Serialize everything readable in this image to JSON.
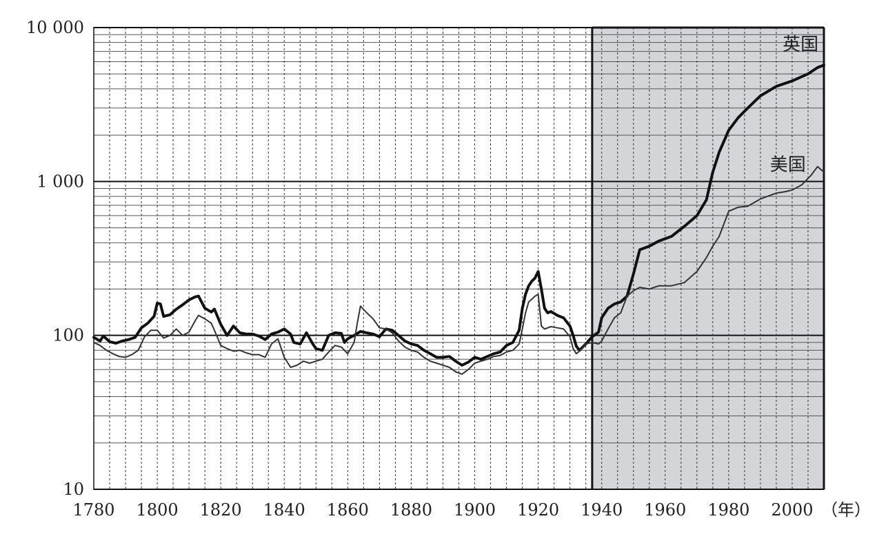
{
  "chart_data": {
    "type": "line",
    "x_unit_label": "（年）",
    "y_scale": "log",
    "ylim": [
      10,
      10000
    ],
    "xlim": [
      1780,
      2010
    ],
    "x_ticks": [
      1780,
      1800,
      1820,
      1840,
      1860,
      1880,
      1900,
      1920,
      1940,
      1960,
      1980,
      2000
    ],
    "x_tick_labels": [
      "1780",
      "1800",
      "1820",
      "1840",
      "1860",
      "1880",
      "1900",
      "1920",
      "1940",
      "1960",
      "1980",
      "2000"
    ],
    "y_ticks": [
      10,
      100,
      1000,
      10000
    ],
    "y_tick_labels": [
      "10",
      "100",
      "1 000",
      "10 000"
    ],
    "grid": true,
    "shaded_region": {
      "x_start": 1937,
      "x_end": 2010,
      "color": "#d4d5d9"
    },
    "series": [
      {
        "name": "英国",
        "color": "#111111",
        "line_width": "thick",
        "points": [
          [
            1780,
            97
          ],
          [
            1782,
            92
          ],
          [
            1783,
            99
          ],
          [
            1785,
            91
          ],
          [
            1787,
            89
          ],
          [
            1789,
            92
          ],
          [
            1791,
            94
          ],
          [
            1793,
            97
          ],
          [
            1795,
            112
          ],
          [
            1797,
            120
          ],
          [
            1799,
            133
          ],
          [
            1800,
            162
          ],
          [
            1801,
            160
          ],
          [
            1802,
            133
          ],
          [
            1804,
            136
          ],
          [
            1806,
            148
          ],
          [
            1808,
            158
          ],
          [
            1810,
            170
          ],
          [
            1812,
            178
          ],
          [
            1813,
            180
          ],
          [
            1815,
            150
          ],
          [
            1817,
            142
          ],
          [
            1818,
            148
          ],
          [
            1820,
            118
          ],
          [
            1822,
            100
          ],
          [
            1824,
            115
          ],
          [
            1826,
            104
          ],
          [
            1828,
            102
          ],
          [
            1830,
            102
          ],
          [
            1832,
            99
          ],
          [
            1834,
            94
          ],
          [
            1836,
            102
          ],
          [
            1838,
            105
          ],
          [
            1840,
            110
          ],
          [
            1842,
            102
          ],
          [
            1843,
            90
          ],
          [
            1845,
            88
          ],
          [
            1847,
            104
          ],
          [
            1849,
            88
          ],
          [
            1850,
            82
          ],
          [
            1852,
            80
          ],
          [
            1854,
            100
          ],
          [
            1856,
            104
          ],
          [
            1858,
            103
          ],
          [
            1859,
            90
          ],
          [
            1860,
            95
          ],
          [
            1862,
            100
          ],
          [
            1864,
            106
          ],
          [
            1866,
            104
          ],
          [
            1868,
            102
          ],
          [
            1870,
            98
          ],
          [
            1872,
            110
          ],
          [
            1874,
            108
          ],
          [
            1876,
            100
          ],
          [
            1878,
            92
          ],
          [
            1880,
            88
          ],
          [
            1882,
            86
          ],
          [
            1884,
            80
          ],
          [
            1886,
            76
          ],
          [
            1888,
            72
          ],
          [
            1890,
            72
          ],
          [
            1892,
            73
          ],
          [
            1894,
            68
          ],
          [
            1896,
            64
          ],
          [
            1898,
            67
          ],
          [
            1900,
            72
          ],
          [
            1902,
            70
          ],
          [
            1904,
            73
          ],
          [
            1906,
            76
          ],
          [
            1908,
            78
          ],
          [
            1910,
            86
          ],
          [
            1912,
            90
          ],
          [
            1914,
            108
          ],
          [
            1915,
            150
          ],
          [
            1916,
            185
          ],
          [
            1917,
            210
          ],
          [
            1918,
            225
          ],
          [
            1919,
            236
          ],
          [
            1920,
            260
          ],
          [
            1921,
            200
          ],
          [
            1922,
            150
          ],
          [
            1923,
            140
          ],
          [
            1924,
            143
          ],
          [
            1926,
            135
          ],
          [
            1928,
            130
          ],
          [
            1930,
            115
          ],
          [
            1931,
            100
          ],
          [
            1932,
            85
          ],
          [
            1933,
            80
          ],
          [
            1935,
            88
          ],
          [
            1937,
            98
          ],
          [
            1939,
            105
          ],
          [
            1940,
            130
          ],
          [
            1942,
            150
          ],
          [
            1944,
            160
          ],
          [
            1946,
            165
          ],
          [
            1948,
            180
          ],
          [
            1950,
            250
          ],
          [
            1952,
            360
          ],
          [
            1955,
            380
          ],
          [
            1958,
            410
          ],
          [
            1962,
            440
          ],
          [
            1966,
            510
          ],
          [
            1970,
            600
          ],
          [
            1973,
            760
          ],
          [
            1975,
            1150
          ],
          [
            1977,
            1550
          ],
          [
            1980,
            2150
          ],
          [
            1983,
            2600
          ],
          [
            1986,
            3000
          ],
          [
            1990,
            3600
          ],
          [
            1995,
            4150
          ],
          [
            2000,
            4500
          ],
          [
            2005,
            5000
          ],
          [
            2008,
            5500
          ],
          [
            2010,
            5700
          ]
        ]
      },
      {
        "name": "美国",
        "color": "#333333",
        "line_width": "thin",
        "points": [
          [
            1780,
            90
          ],
          [
            1782,
            86
          ],
          [
            1784,
            80
          ],
          [
            1786,
            76
          ],
          [
            1788,
            73
          ],
          [
            1790,
            72
          ],
          [
            1792,
            75
          ],
          [
            1794,
            80
          ],
          [
            1796,
            98
          ],
          [
            1798,
            108
          ],
          [
            1800,
            108
          ],
          [
            1802,
            96
          ],
          [
            1804,
            100
          ],
          [
            1806,
            110
          ],
          [
            1808,
            100
          ],
          [
            1810,
            105
          ],
          [
            1812,
            125
          ],
          [
            1813,
            135
          ],
          [
            1815,
            128
          ],
          [
            1817,
            120
          ],
          [
            1818,
            108
          ],
          [
            1820,
            86
          ],
          [
            1822,
            82
          ],
          [
            1824,
            79
          ],
          [
            1826,
            80
          ],
          [
            1828,
            77
          ],
          [
            1830,
            75
          ],
          [
            1832,
            75
          ],
          [
            1834,
            72
          ],
          [
            1836,
            88
          ],
          [
            1838,
            95
          ],
          [
            1840,
            72
          ],
          [
            1842,
            62
          ],
          [
            1844,
            64
          ],
          [
            1846,
            68
          ],
          [
            1848,
            66
          ],
          [
            1850,
            68
          ],
          [
            1852,
            70
          ],
          [
            1854,
            78
          ],
          [
            1856,
            86
          ],
          [
            1858,
            84
          ],
          [
            1860,
            76
          ],
          [
            1862,
            90
          ],
          [
            1863,
            120
          ],
          [
            1864,
            155
          ],
          [
            1866,
            140
          ],
          [
            1868,
            128
          ],
          [
            1870,
            112
          ],
          [
            1872,
            110
          ],
          [
            1874,
            104
          ],
          [
            1876,
            92
          ],
          [
            1878,
            84
          ],
          [
            1880,
            80
          ],
          [
            1882,
            78
          ],
          [
            1884,
            72
          ],
          [
            1886,
            68
          ],
          [
            1888,
            66
          ],
          [
            1890,
            64
          ],
          [
            1892,
            62
          ],
          [
            1894,
            58
          ],
          [
            1896,
            56
          ],
          [
            1898,
            60
          ],
          [
            1900,
            66
          ],
          [
            1902,
            68
          ],
          [
            1904,
            70
          ],
          [
            1906,
            73
          ],
          [
            1908,
            74
          ],
          [
            1910,
            78
          ],
          [
            1912,
            80
          ],
          [
            1914,
            88
          ],
          [
            1915,
            110
          ],
          [
            1916,
            140
          ],
          [
            1917,
            165
          ],
          [
            1918,
            172
          ],
          [
            1919,
            180
          ],
          [
            1920,
            185
          ],
          [
            1921,
            115
          ],
          [
            1922,
            110
          ],
          [
            1924,
            114
          ],
          [
            1926,
            112
          ],
          [
            1928,
            110
          ],
          [
            1930,
            98
          ],
          [
            1931,
            82
          ],
          [
            1932,
            76
          ],
          [
            1933,
            79
          ],
          [
            1935,
            88
          ],
          [
            1937,
            90
          ],
          [
            1939,
            88
          ],
          [
            1940,
            92
          ],
          [
            1942,
            110
          ],
          [
            1944,
            130
          ],
          [
            1946,
            140
          ],
          [
            1948,
            180
          ],
          [
            1950,
            195
          ],
          [
            1952,
            205
          ],
          [
            1955,
            200
          ],
          [
            1958,
            210
          ],
          [
            1962,
            210
          ],
          [
            1966,
            220
          ],
          [
            1970,
            260
          ],
          [
            1973,
            320
          ],
          [
            1975,
            380
          ],
          [
            1977,
            440
          ],
          [
            1980,
            640
          ],
          [
            1983,
            680
          ],
          [
            1986,
            690
          ],
          [
            1990,
            770
          ],
          [
            1995,
            840
          ],
          [
            1998,
            860
          ],
          [
            2000,
            880
          ],
          [
            2003,
            950
          ],
          [
            2006,
            1100
          ],
          [
            2008,
            1250
          ],
          [
            2010,
            1150
          ]
        ]
      }
    ]
  }
}
